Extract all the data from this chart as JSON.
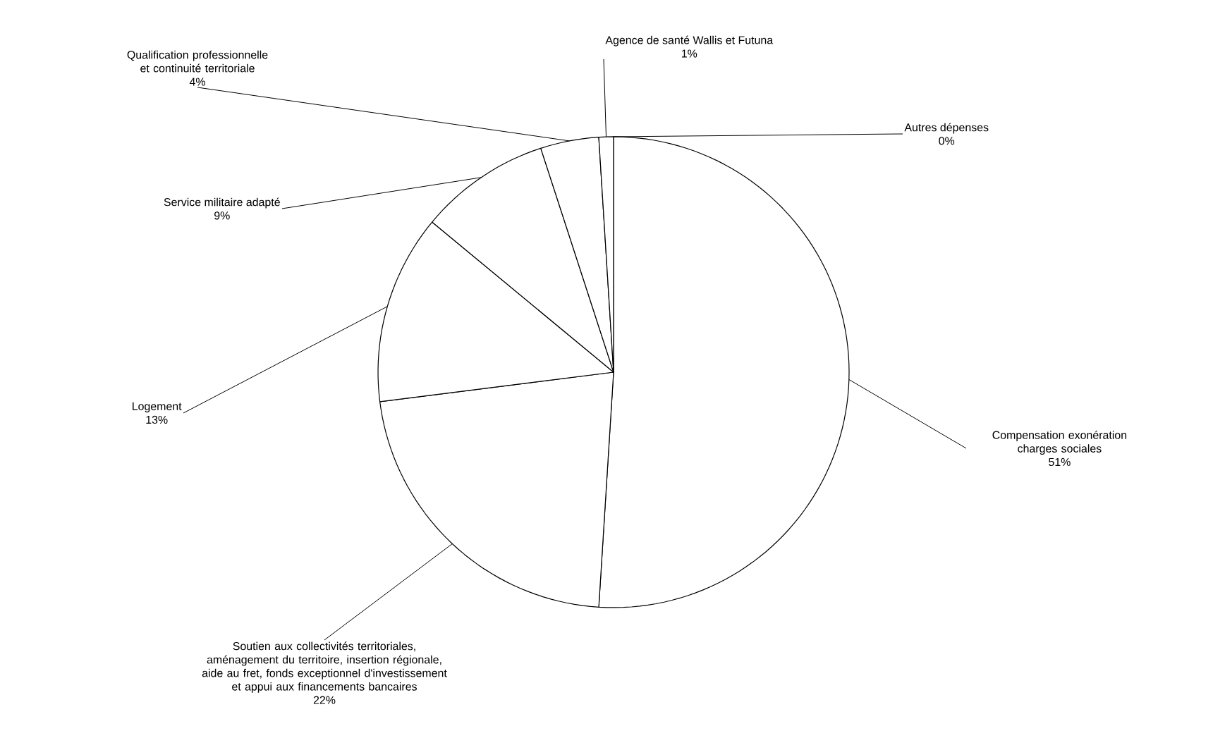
{
  "chart_data": {
    "type": "pie",
    "categories": [
      "Compensation exonération charges sociales",
      "Soutien aux collectivités territoriales, aménagement du territoire, insertion régionale, aide au fret, fonds exceptionnel d'investissement et appui aux financements bancaires",
      "Logement",
      "Service militaire adapté",
      "Qualification professionnelle et continuité territoriale",
      "Agence de santé Wallis et Futuna",
      "Autres dépenses"
    ],
    "values": [
      51,
      22,
      13,
      9,
      4,
      1,
      0
    ],
    "colors": [
      "#ffffff",
      "#ffffff",
      "#ffffff",
      "#ffffff",
      "#ffffff",
      "#ffffff",
      "#ffffff"
    ],
    "value_labels": [
      "51%",
      "22%",
      "13%",
      "9%",
      "4%",
      "1%",
      "0%"
    ]
  }
}
